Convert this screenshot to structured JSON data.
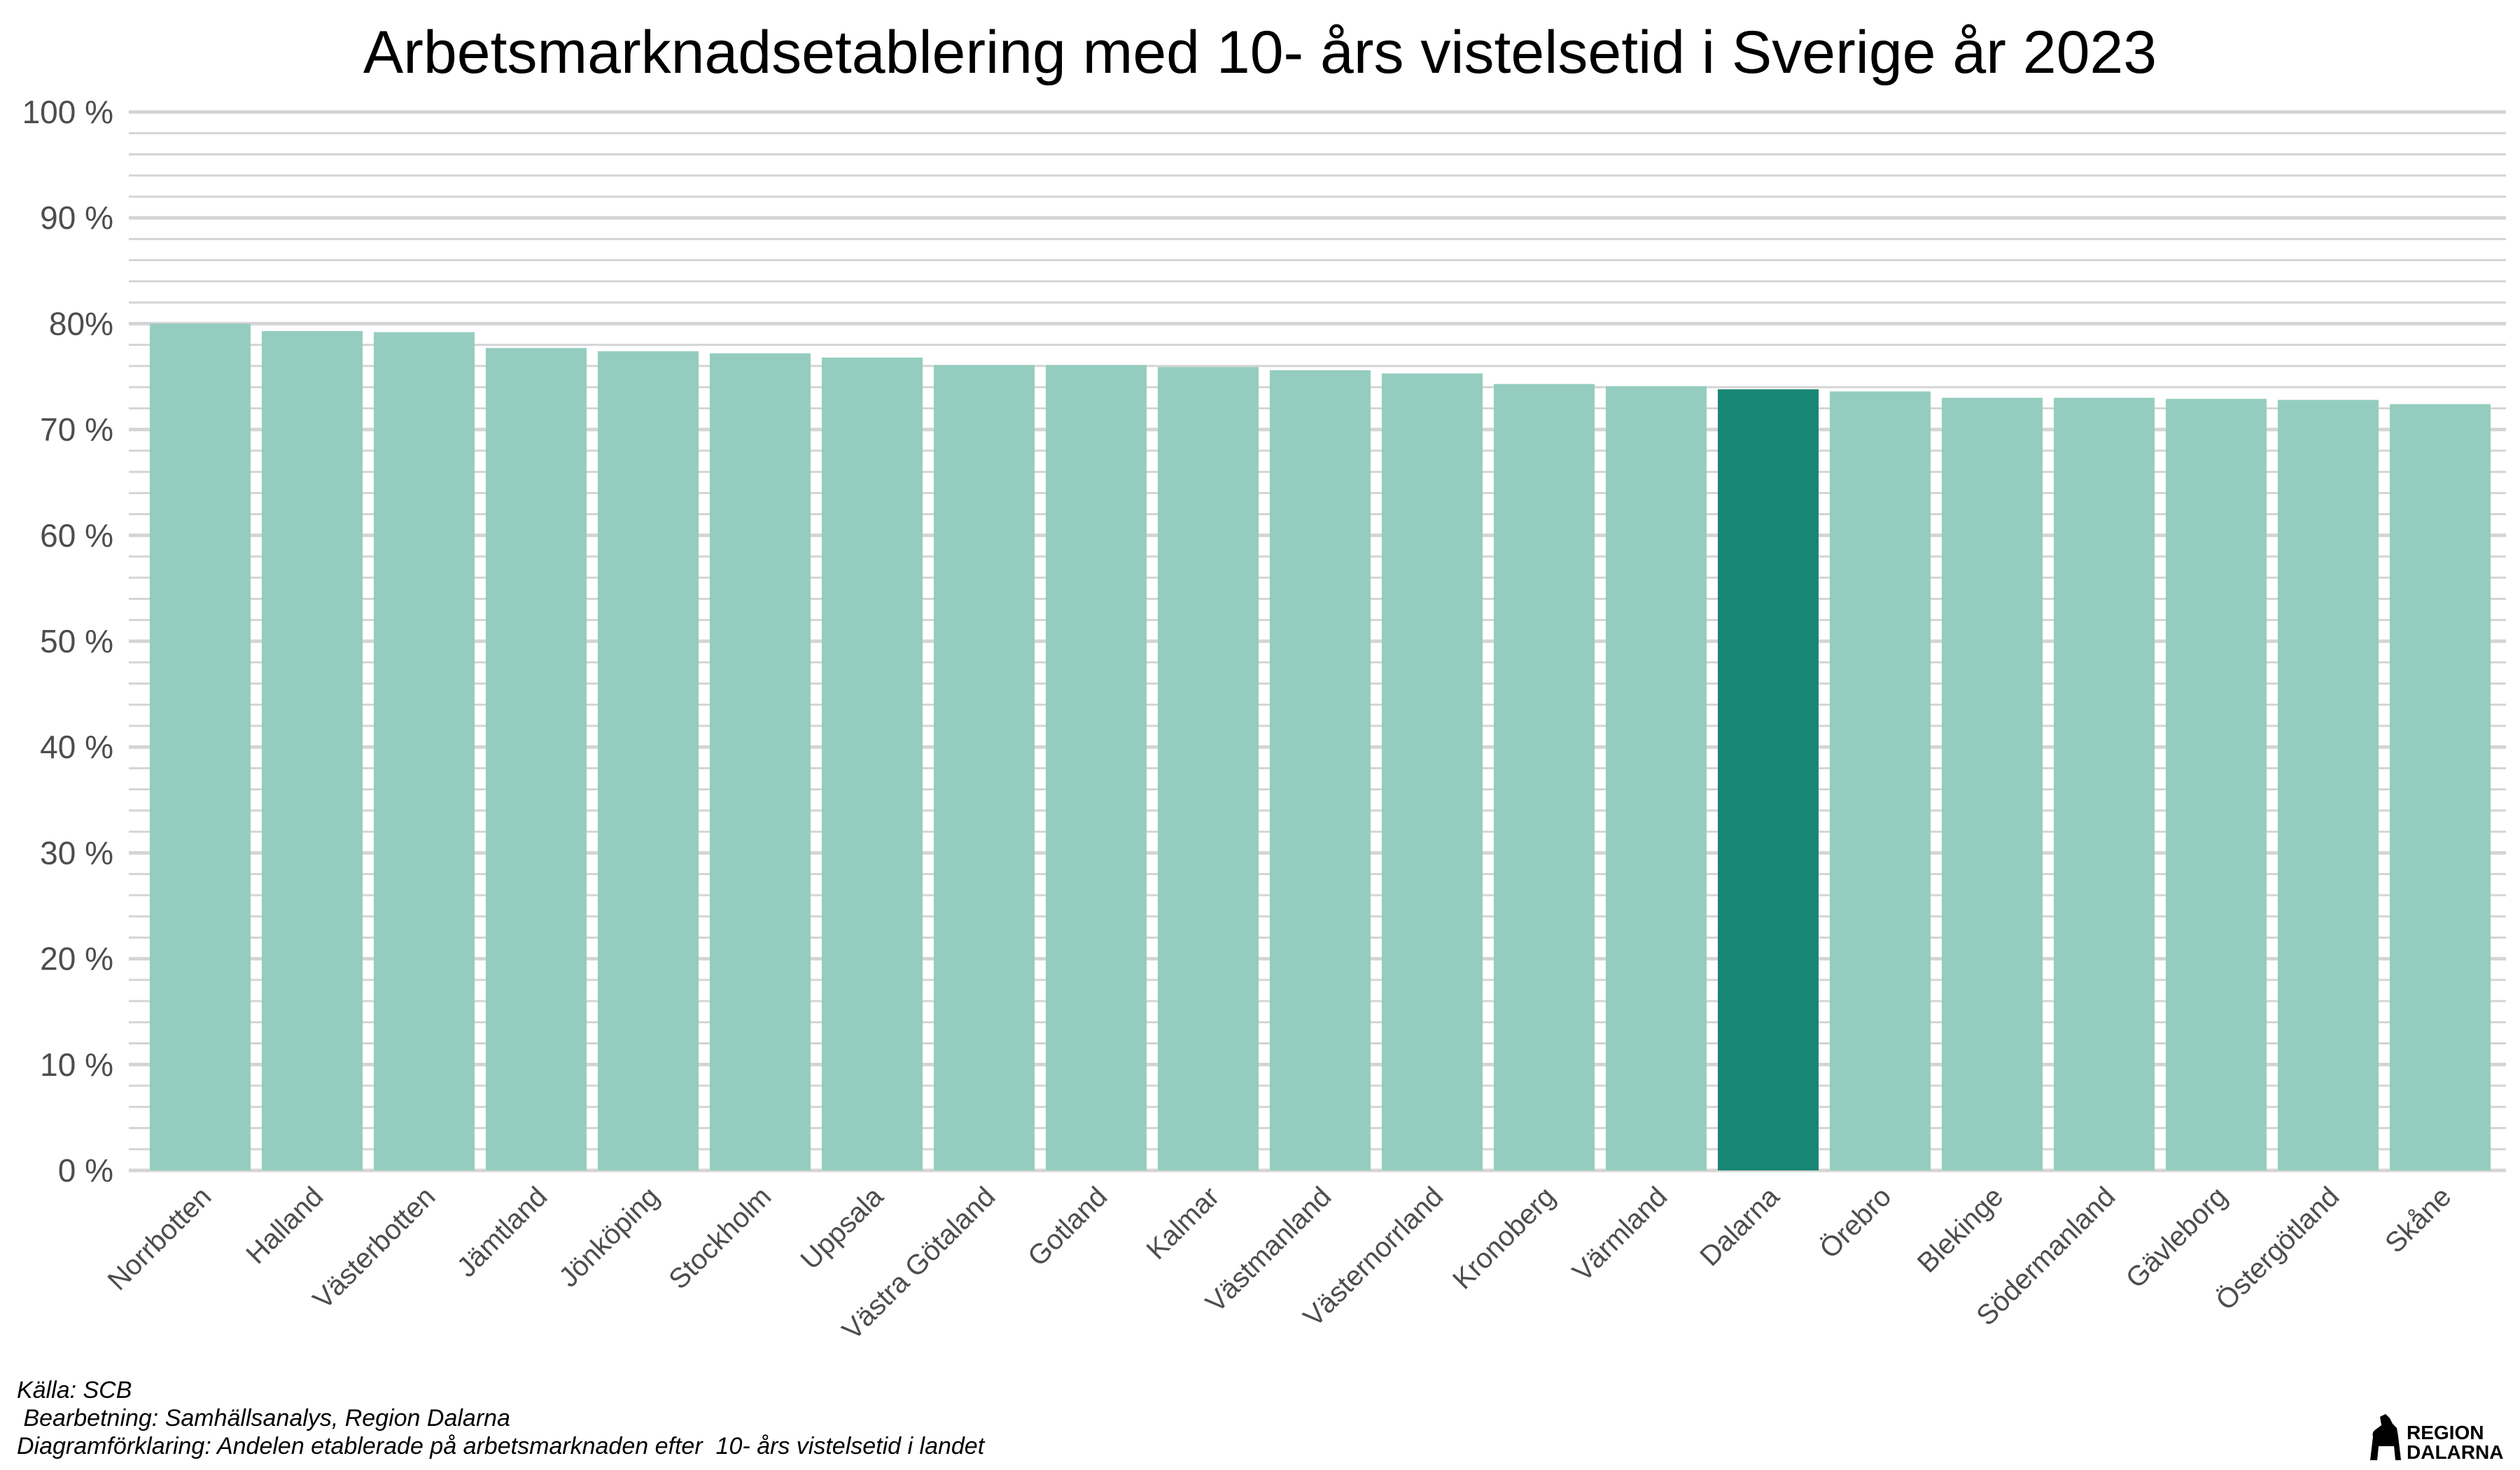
{
  "chart_data": {
    "type": "bar",
    "title": "Arbetsmarknadsetablering med 10- års vistelsetid i Sverige år 2023",
    "xlabel": "",
    "ylabel": "",
    "ylim": [
      0,
      100
    ],
    "ytick_labels": [
      "0 %",
      "10 %",
      "20 %",
      "30 %",
      "40 %",
      "50 %",
      "60 %",
      "70 %",
      "80%",
      "90 %",
      "100 %"
    ],
    "ytick_values": [
      0,
      10,
      20,
      30,
      40,
      50,
      60,
      70,
      80,
      90,
      100
    ],
    "grid": true,
    "categories": [
      "Norrbotten",
      "Halland",
      "Västerbotten",
      "Jämtland",
      "Jönköping",
      "Stockholm",
      "Uppsala",
      "Västra Götaland",
      "Gotland",
      "Kalmar",
      "Västmanland",
      "Västernorrland",
      "Kronoberg",
      "Värmland",
      "Dalarna",
      "Örebro",
      "Blekinge",
      "Södermanland",
      "Gävleborg",
      "Östergötland",
      "Skåne"
    ],
    "values": [
      80.0,
      79.3,
      79.2,
      77.7,
      77.4,
      77.2,
      76.8,
      76.1,
      76.1,
      75.9,
      75.6,
      75.3,
      74.3,
      74.1,
      73.8,
      73.6,
      73.0,
      73.0,
      72.9,
      72.8,
      72.4
    ],
    "highlight": "Dalarna",
    "colors": {
      "default": "#94cdbf",
      "highlight": "#188773",
      "grid": "#d4d4d4"
    }
  },
  "footer": {
    "source": "Källa: SCB",
    "processing": " Bearbetning: Samhällsanalys, Region Dalarna",
    "explanation": "Diagramförklaring: Andelen etablerade på arbetsmarknaden efter  10- års vistelsetid i landet"
  },
  "logo": {
    "line1": "REGION",
    "line2": "DALARNA",
    "icon": "dala-horse-icon"
  }
}
